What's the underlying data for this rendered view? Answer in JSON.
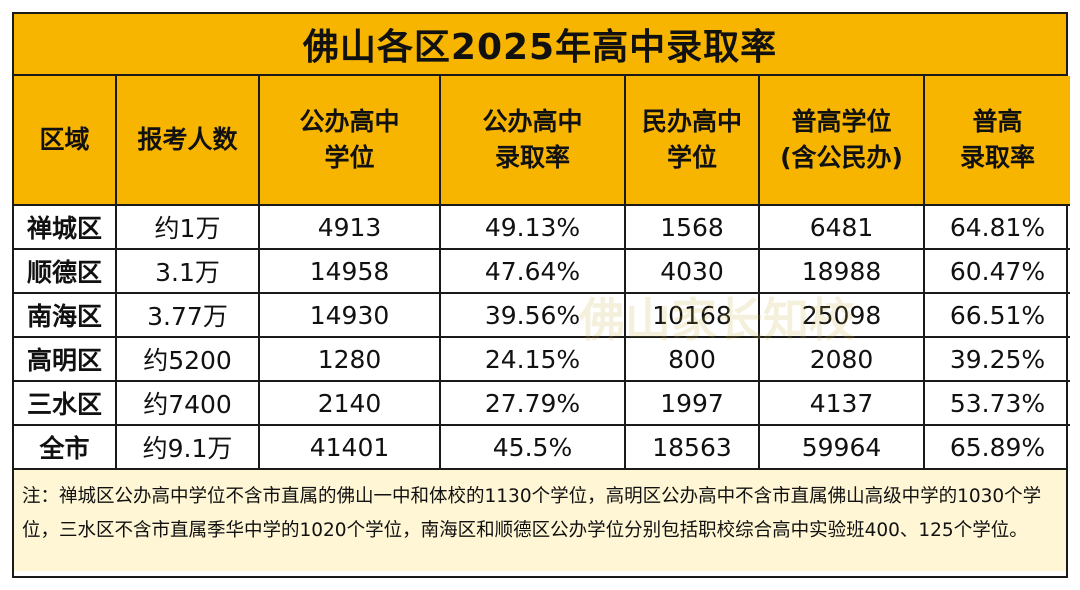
{
  "title": "佛山各区2025年高中录取率",
  "headers": [
    [
      "区域"
    ],
    [
      "报考人数"
    ],
    [
      "公办高中",
      "学位"
    ],
    [
      "公办高中",
      "录取率"
    ],
    [
      "民办高中",
      "学位"
    ],
    [
      "普高学位",
      "(含公民办)"
    ],
    [
      "普高",
      "录取率"
    ]
  ],
  "rows": [
    {
      "region": "禅城区",
      "applicants": "约1万",
      "public_seats": "4913",
      "public_rate": "49.13%",
      "private_seats": "1568",
      "total_seats": "6481",
      "total_rate": "64.81%"
    },
    {
      "region": "顺德区",
      "applicants": "3.1万",
      "public_seats": "14958",
      "public_rate": "47.64%",
      "private_seats": "4030",
      "total_seats": "18988",
      "total_rate": "60.47%"
    },
    {
      "region": "南海区",
      "applicants": "3.77万",
      "public_seats": "14930",
      "public_rate": "39.56%",
      "private_seats": "10168",
      "total_seats": "25098",
      "total_rate": "66.51%"
    },
    {
      "region": "高明区",
      "applicants": "约5200",
      "public_seats": "1280",
      "public_rate": "24.15%",
      "private_seats": "800",
      "total_seats": "2080",
      "total_rate": "39.25%"
    },
    {
      "region": "三水区",
      "applicants": "约7400",
      "public_seats": "2140",
      "public_rate": "27.79%",
      "private_seats": "1997",
      "total_seats": "4137",
      "total_rate": "53.73%"
    },
    {
      "region": "全市",
      "applicants": "约9.1万",
      "public_seats": "41401",
      "public_rate": "45.5%",
      "private_seats": "18563",
      "total_seats": "59964",
      "total_rate": "65.89%"
    }
  ],
  "note": "注：禅城区公办高中学位不含市直属的佛山一中和体校的1130个学位，高明区公办高中不含市直属佛山高级中学的1030个学位，三水区不含市直属季华中学的1020个学位，南海区和顺德区公办学位分别包括职校综合高中实验班400、125个学位。",
  "watermark": "佛山家长知校",
  "colors": {
    "header_bg": "#f7b500",
    "note_bg": "#fff6d5",
    "border": "#1a1a1a"
  }
}
